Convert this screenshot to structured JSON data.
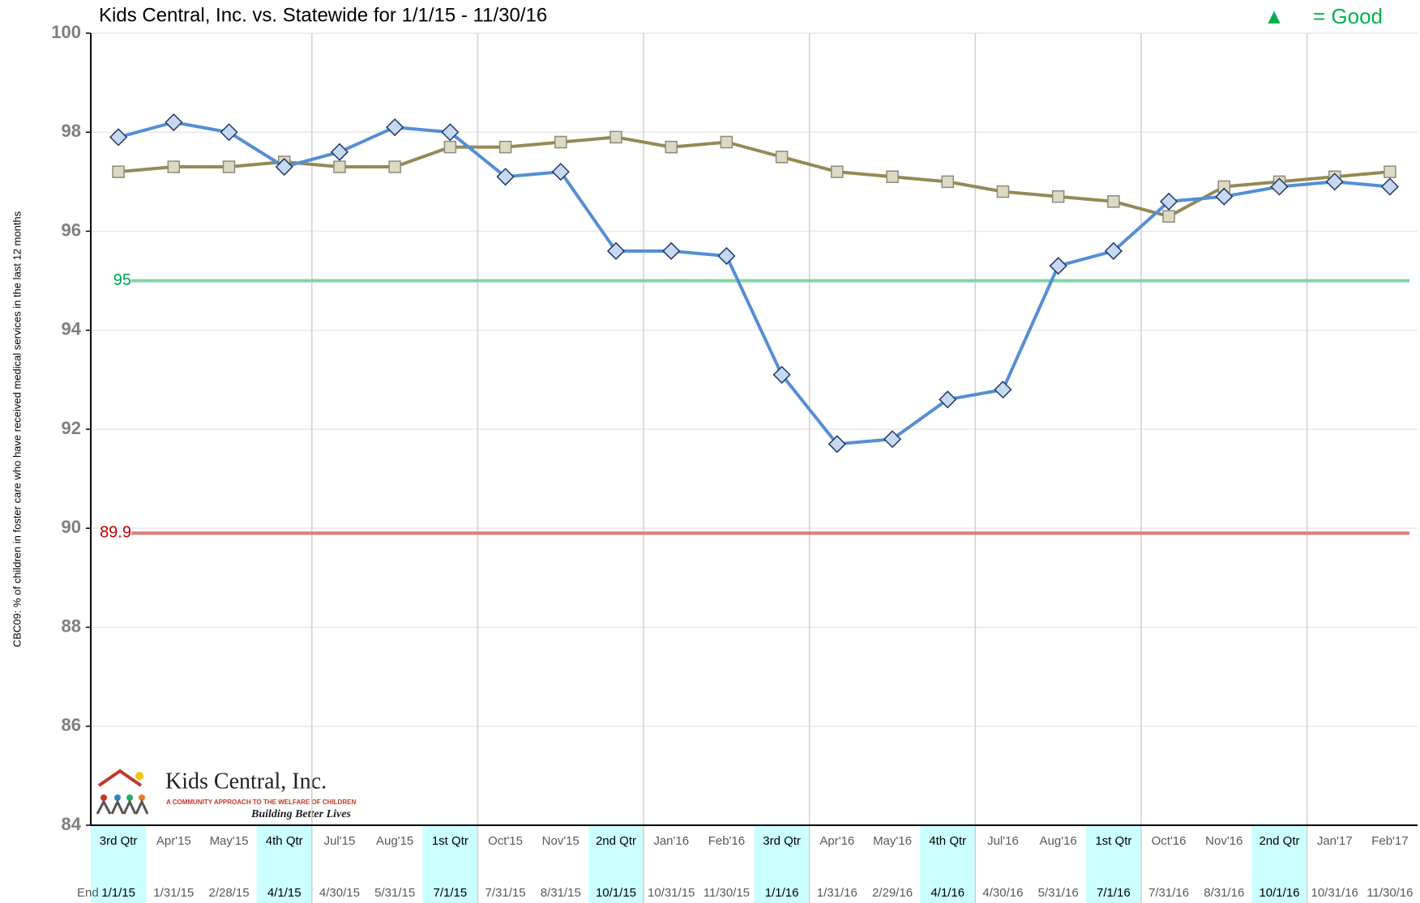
{
  "chart_data": {
    "type": "line",
    "title": "Kids Central, Inc. vs. Statewide for 1/1/15 - 11/30/16",
    "good_marker": "▲",
    "good_text": "= Good",
    "y_label": "CBC09: % of children in foster care who have received medical services in the last 12 months",
    "categories": [
      "3rd Qtr",
      "Apr'15",
      "May'15",
      "4th Qtr",
      "Jul'15",
      "Aug'15",
      "1st Qtr",
      "Oct'15",
      "Nov'15",
      "2nd Qtr",
      "Jan'16",
      "Feb'16",
      "3rd Qtr",
      "Apr'16",
      "May'16",
      "4th Qtr",
      "Jul'16",
      "Aug'16",
      "1st Qtr",
      "Oct'16",
      "Nov'16",
      "2nd Qtr",
      "Jan'17",
      "Feb'17"
    ],
    "end_label": "End",
    "end_dates": [
      "1/1/15",
      "1/31/15",
      "2/28/15",
      "4/1/15",
      "4/30/15",
      "5/31/15",
      "7/1/15",
      "7/31/15",
      "8/31/15",
      "10/1/15",
      "10/31/15",
      "11/30/15",
      "1/1/16",
      "1/31/16",
      "2/29/16",
      "4/1/16",
      "4/30/16",
      "5/31/16",
      "7/1/16",
      "7/31/16",
      "8/31/16",
      "10/1/16",
      "10/31/16",
      "11/30/16"
    ],
    "highlighted_columns": [
      0,
      3,
      6,
      9,
      12,
      15,
      18,
      21
    ],
    "highlight_color": "#ccffff",
    "series": [
      {
        "color": "#558ed5",
        "marker": "diamond",
        "marker_fill": "#c6d9f1",
        "marker_stroke": "#1f3864",
        "values": [
          97.9,
          98.2,
          98.0,
          97.3,
          97.6,
          98.1,
          98.0,
          97.1,
          97.2,
          95.6,
          95.6,
          95.5,
          93.1,
          91.7,
          91.8,
          92.6,
          92.8,
          95.3,
          95.6,
          96.6,
          96.7,
          96.9,
          97.0,
          96.9
        ]
      },
      {
        "color": "#948a54",
        "marker": "square",
        "marker_fill": "#ddd9c3",
        "marker_stroke": "#8c8c7a",
        "values": [
          97.2,
          97.3,
          97.3,
          97.4,
          97.3,
          97.3,
          97.7,
          97.7,
          97.8,
          97.9,
          97.7,
          97.8,
          97.5,
          97.2,
          97.1,
          97.0,
          96.8,
          96.7,
          96.6,
          96.3,
          96.9,
          97.0,
          97.1,
          97.2
        ]
      }
    ],
    "reference_lines": [
      {
        "value": 95,
        "label": "95",
        "color": "#7ed6a0",
        "label_color": "#00a050"
      },
      {
        "value": 89.9,
        "label": "89.9",
        "color": "#e07a7a",
        "label_color": "#c00000"
      }
    ],
    "ylim": [
      84,
      100
    ],
    "yticks": [
      84,
      86,
      88,
      90,
      92,
      94,
      96,
      98,
      100
    ],
    "grid": true,
    "logo": {
      "name": "Kids Central, Inc.",
      "tagline": "A COMMUNITY APPROACH TO THE WELFARE OF CHILDREN",
      "motto": "Building Better Lives"
    }
  }
}
